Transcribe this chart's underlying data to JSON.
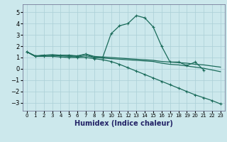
{
  "xlabel": "Humidex (Indice chaleur)",
  "xlim": [
    -0.5,
    23.5
  ],
  "ylim": [
    -3.7,
    5.7
  ],
  "xticks": [
    0,
    1,
    2,
    3,
    4,
    5,
    6,
    7,
    8,
    9,
    10,
    11,
    12,
    13,
    14,
    15,
    16,
    17,
    18,
    19,
    20,
    21,
    22,
    23
  ],
  "yticks": [
    -3,
    -2,
    -1,
    0,
    1,
    2,
    3,
    4,
    5
  ],
  "bg_color": "#cce8ec",
  "grid_color": "#aacfd6",
  "line_color": "#1a6b5a",
  "s1_x": [
    0,
    1,
    2,
    3,
    4,
    5,
    6,
    7,
    8,
    9,
    10,
    11,
    12,
    13,
    14,
    15,
    16,
    17,
    18,
    19,
    20,
    21
  ],
  "s1_y": [
    1.5,
    1.1,
    1.2,
    1.2,
    1.2,
    1.2,
    1.1,
    1.3,
    1.0,
    1.0,
    3.1,
    3.8,
    4.0,
    4.7,
    4.5,
    3.7,
    2.0,
    0.6,
    0.6,
    0.3,
    0.6,
    -0.1
  ],
  "s2_x": [
    0,
    1,
    2,
    3,
    4,
    5,
    6,
    7,
    8,
    9,
    10,
    11,
    12,
    13,
    14,
    15,
    16,
    17,
    18,
    19,
    20,
    21,
    22,
    23
  ],
  "s2_y": [
    1.5,
    1.15,
    1.2,
    1.25,
    1.2,
    1.2,
    1.15,
    1.3,
    1.1,
    1.05,
    1.0,
    0.95,
    0.9,
    0.85,
    0.8,
    0.75,
    0.65,
    0.6,
    0.55,
    0.5,
    0.4,
    0.35,
    0.25,
    0.15
  ],
  "s3_x": [
    0,
    1,
    2,
    3,
    4,
    5,
    6,
    7,
    8,
    9,
    10,
    11,
    12,
    13,
    14,
    15,
    16,
    17,
    18,
    19,
    20,
    21,
    22,
    23
  ],
  "s3_y": [
    1.5,
    1.1,
    1.2,
    1.2,
    1.15,
    1.1,
    1.05,
    1.15,
    1.0,
    0.95,
    0.9,
    0.85,
    0.8,
    0.75,
    0.7,
    0.65,
    0.5,
    0.4,
    0.35,
    0.25,
    0.15,
    0.05,
    -0.1,
    -0.25
  ],
  "s4_x": [
    0,
    1,
    2,
    3,
    4,
    5,
    6,
    7,
    8,
    9,
    10,
    11,
    12,
    13,
    14,
    15,
    16,
    17,
    18,
    19,
    20,
    21,
    22,
    23
  ],
  "s4_y": [
    1.5,
    1.1,
    1.1,
    1.1,
    1.05,
    1.0,
    1.0,
    1.0,
    0.9,
    0.8,
    0.65,
    0.4,
    0.1,
    -0.2,
    -0.5,
    -0.8,
    -1.1,
    -1.4,
    -1.7,
    -2.0,
    -2.3,
    -2.55,
    -2.8,
    -3.1
  ]
}
